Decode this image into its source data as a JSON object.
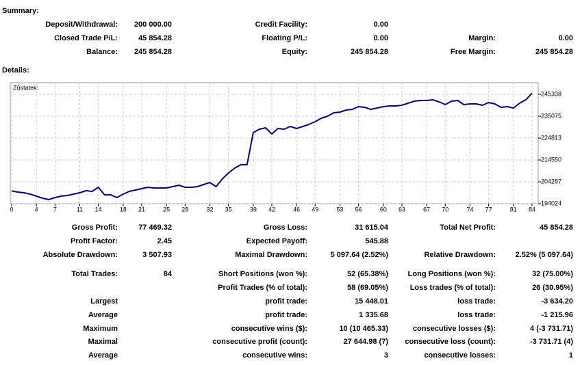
{
  "summary": {
    "title": "Summary:",
    "rows": [
      [
        "Deposit/Withdrawal:",
        "200 000.00",
        "Credit Facility:",
        "0.00",
        null,
        null
      ],
      [
        "Closed Trade P/L:",
        "45 854.28",
        "Floating P/L:",
        "0.00",
        "Margin:",
        "0.00"
      ],
      [
        "Balance:",
        "245 854.28",
        "Equity:",
        "245 854.28",
        "Free Margin:",
        "245 854.28"
      ]
    ]
  },
  "details": {
    "title": "Details:",
    "rows": [
      [
        "Gross Profit:",
        "77 469.32",
        "Gross Loss:",
        "31 615.04",
        "Total Net Profit:",
        "45 854.28"
      ],
      [
        "Profit Factor:",
        "2.45",
        "Expected Payoff:",
        "545.88",
        null,
        null
      ],
      [
        "Absolute Drawdown:",
        "3 507.93",
        "Maximal Drawdown:",
        "5 097.64 (2.52%)",
        "Relative Drawdown:",
        "2.52% (5 097.64)"
      ],
      [
        "Total Trades:",
        "84",
        "Short Positions (won %):",
        "52 (65.38%)",
        "Long Positions (won %):",
        "32 (75.00%)"
      ],
      [
        null,
        null,
        "Profit Trades (% of total):",
        "58 (69.05%)",
        "Loss trades (% of total):",
        "26 (30.95%)"
      ],
      [
        "Largest",
        null,
        "profit trade:",
        "15 448.01",
        "loss trade:",
        "-3 634.20"
      ],
      [
        "Average",
        null,
        "profit trade:",
        "1 335.68",
        "loss trade:",
        "-1 215.96"
      ],
      [
        "Maximum",
        null,
        "consecutive wins ($):",
        "10 (10 465.33)",
        "consecutive losses ($):",
        "4 (-3 731.71)"
      ],
      [
        "Maximal",
        null,
        "consecutive profit (count):",
        "27 644.98 (7)",
        "consecutive loss (count):",
        "-3 731.71 (4)"
      ],
      [
        "Average",
        null,
        "consecutive wins:",
        "3",
        "consecutive losses:",
        "1"
      ]
    ]
  },
  "chart_data": {
    "type": "line",
    "title": "Zůstatek:",
    "color": "#00008b",
    "grid": true,
    "x": [
      0,
      1,
      2,
      3,
      4,
      5,
      6,
      7,
      8,
      9,
      10,
      11,
      12,
      13,
      14,
      15,
      16,
      17,
      18,
      19,
      20,
      21,
      22,
      23,
      24,
      25,
      26,
      27,
      28,
      29,
      30,
      31,
      32,
      33,
      34,
      35,
      36,
      37,
      38,
      39,
      40,
      41,
      42,
      43,
      44,
      45,
      46,
      47,
      48,
      49,
      50,
      51,
      52,
      53,
      54,
      55,
      56,
      57,
      58,
      59,
      60,
      61,
      62,
      63,
      64,
      65,
      66,
      67,
      68,
      69,
      70,
      71,
      72,
      73,
      74,
      75,
      76,
      77,
      78,
      79,
      80,
      81,
      82,
      83,
      84
    ],
    "values": [
      200000,
      199476,
      199155,
      198514,
      197552,
      196590,
      195948,
      196910,
      197552,
      197872,
      198514,
      199155,
      200117,
      199796,
      201721,
      198193,
      198193,
      196910,
      198514,
      199796,
      200438,
      201079,
      201721,
      201400,
      201400,
      201400,
      202042,
      202683,
      201721,
      201721,
      202042,
      203004,
      203966,
      202042,
      205569,
      208456,
      210700,
      212304,
      212304,
      227377,
      228980,
      229622,
      226736,
      229301,
      228980,
      230263,
      229301,
      230263,
      231225,
      232508,
      234112,
      235074,
      236677,
      236998,
      237960,
      238281,
      239563,
      239243,
      238281,
      238922,
      239563,
      239884,
      239884,
      240205,
      241167,
      242129,
      242450,
      242450,
      242770,
      241809,
      240526,
      242129,
      242450,
      240526,
      240846,
      240846,
      240205,
      241488,
      240846,
      239243,
      239563,
      238922,
      241167,
      242770,
      245854.28
    ],
    "xlim": [
      0,
      85
    ],
    "xticks": [
      0,
      4,
      7,
      11,
      14,
      18,
      21,
      25,
      28,
      32,
      35,
      39,
      42,
      46,
      49,
      53,
      56,
      60,
      63,
      67,
      70,
      74,
      77,
      81,
      84
    ],
    "ylim": [
      194024,
      250790
    ],
    "yticks": [
      194024,
      204287,
      214550,
      224813,
      235075,
      245338
    ]
  }
}
